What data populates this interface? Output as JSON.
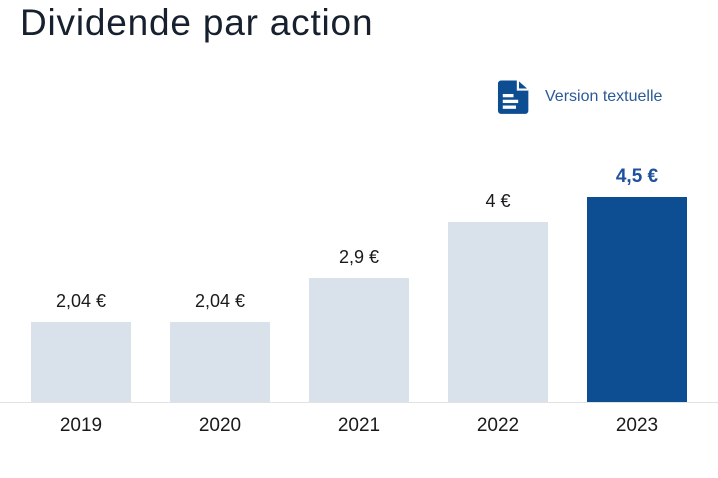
{
  "header": {
    "title": "Dividende par action"
  },
  "actions": {
    "text_version": {
      "label": "Version textuelle",
      "icon": "text-document-icon",
      "color": "#2a5a98",
      "icon_color": "#0d4d92"
    }
  },
  "chart_data": {
    "type": "bar",
    "title": "Dividende par action",
    "categories": [
      "2019",
      "2020",
      "2021",
      "2022",
      "2023"
    ],
    "values": [
      2.04,
      2.04,
      2.9,
      4,
      4.5
    ],
    "value_labels": [
      "2,04 €",
      "2,04 €",
      "2,9 €",
      "4 €",
      "4,5 €"
    ],
    "unit": "€",
    "highlight_index": 4,
    "xlabel": "",
    "ylabel": "",
    "ylim": [
      0,
      5
    ],
    "grid": false,
    "legend": null,
    "colors": {
      "bar_default": "#d9e1eb",
      "bar_highlight": "#0d4d92",
      "value_label_default": "#1a1a1a",
      "value_label_highlight": "#1d509e",
      "axis_line": "#e2e2e2"
    }
  }
}
